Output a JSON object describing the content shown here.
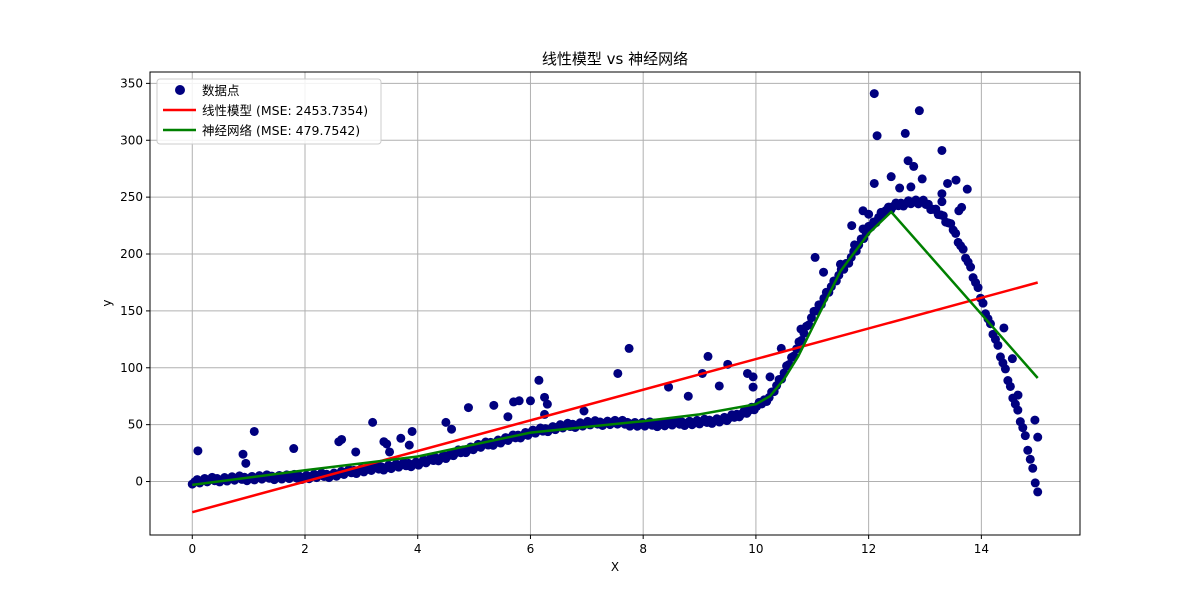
{
  "chart_data": {
    "type": "scatter",
    "title": "线性模型 vs 神经网络",
    "xlabel": "X",
    "ylabel": "y",
    "xlim": [
      -0.75,
      15.75
    ],
    "ylim": [
      -47,
      360
    ],
    "xticks": [
      0,
      2,
      4,
      6,
      8,
      10,
      12,
      14
    ],
    "yticks": [
      0,
      50,
      100,
      150,
      200,
      250,
      300,
      350
    ],
    "grid": true,
    "legend_position": "upper-left",
    "colors": {
      "points": "#00007f",
      "linear": "#ff0000",
      "neural": "#008000"
    },
    "series": [
      {
        "name": "数据点",
        "kind": "scatter",
        "base_curve": {
          "x": [
            0,
            0.5,
            1,
            1.5,
            2,
            2.5,
            3,
            3.5,
            4,
            4.5,
            5,
            5.5,
            6,
            6.5,
            7,
            7.5,
            8,
            8.5,
            9,
            9.5,
            10,
            10.25,
            10.5,
            10.75,
            11,
            11.25,
            11.5,
            11.75,
            12,
            12.25,
            12.5,
            12.75,
            13,
            13.25,
            13.5,
            13.75,
            14,
            14.25,
            14.5,
            14.75,
            15
          ],
          "y": [
            0,
            2,
            3,
            4,
            4,
            6,
            10,
            13,
            16,
            22,
            30,
            36,
            43,
            48,
            51,
            52,
            50,
            51,
            52,
            55,
            65,
            75,
            95,
            120,
            145,
            165,
            183,
            202,
            222,
            237,
            243,
            246,
            245,
            236,
            222,
            195,
            160,
            125,
            85,
            45,
            -10
          ]
        },
        "outliers": [
          [
            0.1,
            27
          ],
          [
            0.9,
            24
          ],
          [
            0.95,
            16
          ],
          [
            1.1,
            44
          ],
          [
            1.8,
            29
          ],
          [
            2.6,
            35
          ],
          [
            2.65,
            37
          ],
          [
            2.9,
            26
          ],
          [
            3.2,
            52
          ],
          [
            3.4,
            35
          ],
          [
            3.45,
            33
          ],
          [
            3.5,
            26
          ],
          [
            3.7,
            38
          ],
          [
            3.85,
            32
          ],
          [
            3.9,
            44
          ],
          [
            4.5,
            52
          ],
          [
            4.6,
            46
          ],
          [
            4.9,
            65
          ],
          [
            5.35,
            67
          ],
          [
            5.6,
            57
          ],
          [
            5.7,
            70
          ],
          [
            5.8,
            71
          ],
          [
            6.0,
            71
          ],
          [
            6.15,
            89
          ],
          [
            6.25,
            74
          ],
          [
            6.3,
            68
          ],
          [
            6.25,
            59
          ],
          [
            6.95,
            62
          ],
          [
            7.55,
            95
          ],
          [
            7.75,
            117
          ],
          [
            8.45,
            83
          ],
          [
            8.8,
            75
          ],
          [
            9.05,
            95
          ],
          [
            9.15,
            110
          ],
          [
            9.35,
            84
          ],
          [
            9.5,
            103
          ],
          [
            9.85,
            95
          ],
          [
            9.95,
            92
          ],
          [
            9.95,
            83
          ],
          [
            10.25,
            92
          ],
          [
            10.45,
            117
          ],
          [
            10.8,
            134
          ],
          [
            11.05,
            197
          ],
          [
            11.2,
            184
          ],
          [
            11.5,
            191
          ],
          [
            11.7,
            225
          ],
          [
            11.75,
            208
          ],
          [
            11.9,
            238
          ],
          [
            11.9,
            222
          ],
          [
            12.0,
            235
          ],
          [
            12.1,
            262
          ],
          [
            12.1,
            341
          ],
          [
            12.15,
            304
          ],
          [
            12.4,
            268
          ],
          [
            12.55,
            258
          ],
          [
            12.65,
            306
          ],
          [
            12.7,
            282
          ],
          [
            12.75,
            259
          ],
          [
            12.8,
            277
          ],
          [
            12.95,
            266
          ],
          [
            12.9,
            326
          ],
          [
            13.3,
            291
          ],
          [
            13.3,
            253
          ],
          [
            13.3,
            246
          ],
          [
            13.4,
            262
          ],
          [
            13.55,
            265
          ],
          [
            13.6,
            238
          ],
          [
            13.65,
            241
          ],
          [
            13.75,
            257
          ],
          [
            14.4,
            135
          ],
          [
            14.55,
            108
          ],
          [
            14.65,
            76
          ],
          [
            14.95,
            54
          ],
          [
            15.0,
            39
          ]
        ]
      },
      {
        "name": "线性模型 (MSE: 2453.7354)",
        "kind": "line",
        "x": [
          0,
          15
        ],
        "y": [
          -27,
          175
        ]
      },
      {
        "name": "神经网络 (MSE: 479.7542)",
        "kind": "line",
        "x": [
          0,
          2,
          4,
          6,
          8,
          9,
          10,
          10.25,
          10.5,
          10.75,
          11,
          11.5,
          12,
          12.4,
          15
        ],
        "y": [
          -3,
          10,
          22,
          43,
          53,
          59,
          68,
          75,
          90,
          110,
          135,
          185,
          218,
          237,
          91
        ]
      }
    ]
  }
}
